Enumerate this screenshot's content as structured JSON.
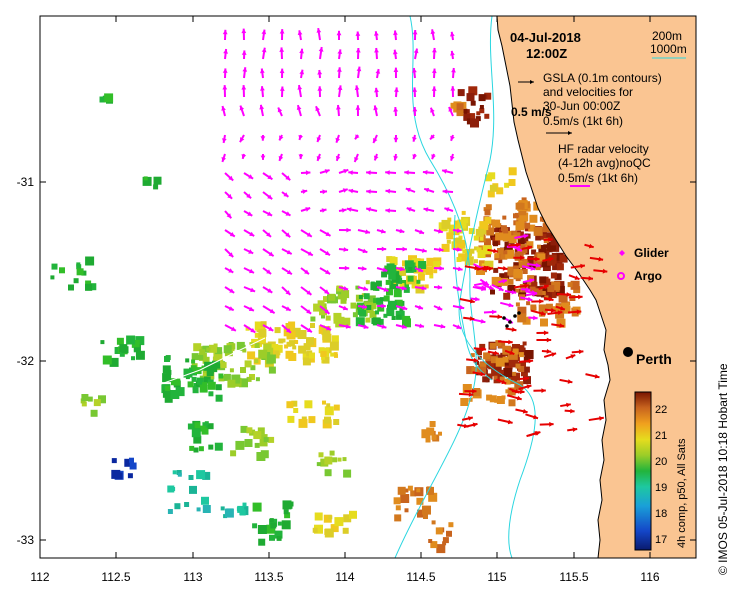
{
  "map": {
    "date": "04-Jul-2018",
    "time": "12:00Z",
    "x_ticks": [
      "112",
      "112.5",
      "113",
      "113.5",
      "114",
      "114.5",
      "115",
      "115.5",
      "116"
    ],
    "y_ticks": [
      "-31",
      "-32",
      "-33"
    ],
    "lon_range": [
      112,
      116.3
    ],
    "lat_range": [
      -33.1,
      -30.1
    ],
    "city": "Perth"
  },
  "legend": {
    "depth_200": "200m",
    "depth_1000": "1000m",
    "gsla_line1": "GSLA (0.1m contours)",
    "gsla_line2": "and velocities for",
    "gsla_line3": "30-Jun 00:00Z",
    "gsla_scale": "0.5m/s (1kt 6h)",
    "speed_label": "0.5 m/s",
    "hf_line1": "HF radar velocity",
    "hf_line2": "(4-12h avg)noQC",
    "hf_scale": "0.5m/s (1kt 6h)",
    "glider": "Glider",
    "argo": "Argo"
  },
  "colorbar": {
    "ticks": [
      "22",
      "21",
      "20",
      "19",
      "18",
      "17"
    ],
    "label": "4h comp, p50, All Sats",
    "colors": [
      "#0a1a6e",
      "#1446c8",
      "#1aa0d8",
      "#1ec8a0",
      "#22b43c",
      "#9ccd28",
      "#e6dc1e",
      "#f0a01e",
      "#c8641e",
      "#781400"
    ]
  },
  "credit": "© IMOS 05-Jul-2018 10:18 Hobart Time"
}
